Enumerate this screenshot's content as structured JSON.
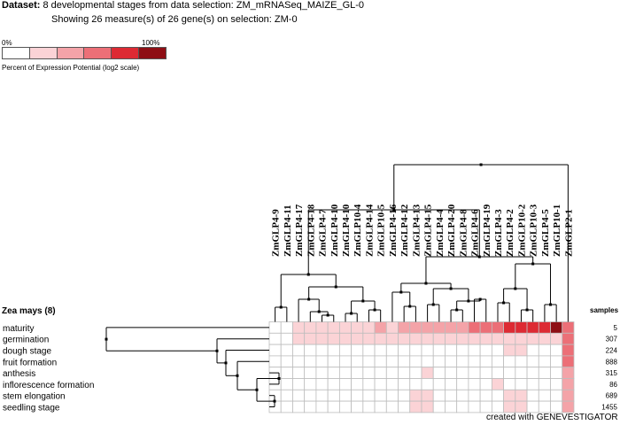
{
  "header": {
    "dataset_label": "Dataset:",
    "dataset_text": "8 developmental stages from data selection: ZM_mRNASeq_MAIZE_GL-0",
    "showing_text": "Showing 26 measure(s) of 26 gene(s) on selection: ZM-0"
  },
  "legend": {
    "min_label": "0%",
    "max_label": "100%",
    "title": "Percent of Expression Potential (log2 scale)",
    "colors": [
      "#ffffff",
      "#fbd3d6",
      "#f4a3a8",
      "#ec6f77",
      "#dd2a33",
      "#8e0e14"
    ]
  },
  "organism": "Zea mays (8)",
  "samples_header": "samples",
  "credit": "created with GENEVESTIGATOR",
  "chart_data": {
    "type": "heatmap",
    "x": [
      "ZmGLP4-9",
      "ZmGLP4-11",
      "ZmGLP4-17",
      "ZmGLP4-18",
      "ZmGLP4-7",
      "ZmGLP4-10",
      "ZmGLP4-10",
      "ZmGLP10-4",
      "ZmGLP4-14",
      "ZmGLP10-5",
      "ZmGLP4-16",
      "ZmGLP4-12",
      "ZmGLP4-13",
      "ZmGLP4-15",
      "ZmGLP4-4",
      "ZmGLP4-20",
      "ZmGLP4-8",
      "ZmGLP4-6",
      "ZmGLP4-19",
      "ZmGLP4-3",
      "ZmGLP4-2",
      "ZmGLP10-2",
      "ZmGLP10-3",
      "ZmGLP4-5",
      "ZmGLP10-1",
      "ZmGLP2-1"
    ],
    "y": [
      "maturity",
      "germination",
      "dough stage",
      "fruit formation",
      "anthesis",
      "inflorescence formation",
      "stem elongation",
      "seedling stage"
    ],
    "samples": [
      "5",
      "307",
      "224",
      "888",
      "315",
      "86",
      "689",
      "1455"
    ],
    "value_scale": "0-5 (legend color index)",
    "values": [
      [
        0,
        0,
        1,
        1,
        1,
        1,
        1,
        1,
        1,
        2,
        1,
        2,
        2,
        2,
        2,
        2,
        2,
        3,
        3,
        3,
        4,
        4,
        4,
        4,
        5,
        3
      ],
      [
        0,
        0,
        1,
        1,
        1,
        1,
        1,
        1,
        1,
        1,
        1,
        1,
        1,
        1,
        1,
        1,
        1,
        1,
        1,
        1,
        1,
        1,
        1,
        1,
        1,
        3
      ],
      [
        0,
        0,
        0,
        0,
        0,
        0,
        0,
        0,
        0,
        0,
        0,
        0,
        0,
        0,
        0,
        0,
        0,
        0,
        0,
        0,
        1,
        1,
        0,
        0,
        0,
        3
      ],
      [
        0,
        0,
        0,
        0,
        0,
        0,
        0,
        0,
        0,
        0,
        0,
        0,
        0,
        0,
        0,
        0,
        0,
        0,
        0,
        0,
        0,
        0,
        0,
        0,
        0,
        3
      ],
      [
        0,
        0,
        0,
        0,
        0,
        0,
        0,
        0,
        0,
        0,
        0,
        0,
        0,
        1,
        0,
        0,
        0,
        0,
        0,
        0,
        0,
        0,
        0,
        0,
        0,
        2
      ],
      [
        0,
        0,
        0,
        0,
        0,
        0,
        0,
        0,
        0,
        0,
        0,
        0,
        0,
        0,
        0,
        0,
        0,
        0,
        0,
        1,
        0,
        0,
        0,
        0,
        0,
        2
      ],
      [
        0,
        0,
        0,
        0,
        0,
        0,
        0,
        0,
        0,
        0,
        0,
        0,
        1,
        1,
        0,
        0,
        0,
        0,
        0,
        0,
        1,
        1,
        0,
        0,
        0,
        2
      ],
      [
        0,
        0,
        0,
        0,
        0,
        0,
        0,
        0,
        0,
        0,
        0,
        0,
        1,
        1,
        0,
        0,
        0,
        0,
        0,
        0,
        1,
        1,
        0,
        0,
        0,
        2
      ]
    ]
  }
}
